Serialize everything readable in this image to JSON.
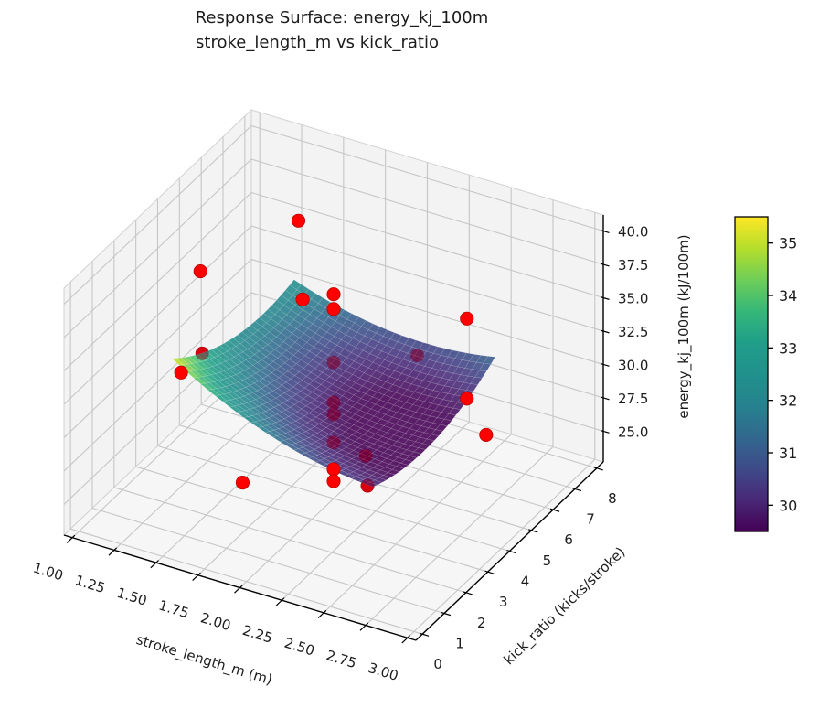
{
  "figure": {
    "background": "#ffffff",
    "title_line1": "Response Surface: energy_kj_100m",
    "title_line2": "stroke_length_m vs kick_ratio"
  },
  "chart_data": {
    "type": "scatter",
    "subtype": "3d-response-surface",
    "title": "Response Surface: energy_kj_100m\nstroke_length_m vs kick_ratio",
    "x_axis": {
      "label": "stroke_length_m (m)",
      "ticks": [
        1.0,
        1.25,
        1.5,
        1.75,
        2.0,
        2.25,
        2.5,
        2.75,
        3.0
      ],
      "tick_labels": [
        "1.00",
        "1.25",
        "1.50",
        "1.75",
        "2.00",
        "2.25",
        "2.50",
        "2.75",
        "3.00"
      ],
      "range": [
        0.95,
        3.05
      ]
    },
    "y_axis": {
      "label": "kick_ratio (kicks/stroke)",
      "ticks": [
        0,
        1,
        2,
        3,
        4,
        5,
        6,
        7,
        8
      ],
      "tick_labels": [
        "0",
        "1",
        "2",
        "3",
        "4",
        "5",
        "6",
        "7",
        "8"
      ],
      "range": [
        -0.3,
        8.3
      ]
    },
    "z_axis": {
      "label": "energy_kj_100m (kJ/100m)",
      "ticks": [
        25.0,
        27.5,
        30.0,
        32.5,
        35.0,
        37.5,
        40.0
      ],
      "tick_labels": [
        "25.0",
        "27.5",
        "30.0",
        "32.5",
        "35.0",
        "37.5",
        "40.0"
      ],
      "range": [
        22.7,
        41.2
      ]
    },
    "grid": true,
    "legend": false,
    "colormap": "viridis",
    "colorbar": {
      "vmin": 29.5,
      "vmax": 35.5,
      "ticks": [
        30,
        31,
        32,
        33,
        34,
        35
      ],
      "tick_labels": [
        "30",
        "31",
        "32",
        "33",
        "34",
        "35"
      ]
    },
    "surface": {
      "x_domain": [
        1.4,
        2.6
      ],
      "y_domain": [
        1.2,
        6.8
      ],
      "model": {
        "c0": 29.8,
        "c1": -2.667,
        "c2": -0.158,
        "c11": 3.0,
        "c22": 0.18,
        "c12": 0.569,
        "x0": 2.0,
        "y0": 4.0
      },
      "opacity": 0.88,
      "mesh_n": 28
    },
    "scatter": {
      "color": "#ff0000",
      "edge_color": "#b00000",
      "occluded_tint": "rgba(150,0,40,0.38)",
      "marker_radius": 7.2,
      "points": [
        {
          "x": 1.4,
          "y": 7.0,
          "z": 36.6,
          "behind": false
        },
        {
          "x": 1.4,
          "y": 2.5,
          "z": 39.8,
          "behind": false
        },
        {
          "x": 1.75,
          "y": 4.5,
          "z": 35.9,
          "behind": false
        },
        {
          "x": 2.0,
          "y": 4.0,
          "z": 38.0,
          "behind": false
        },
        {
          "x": 2.0,
          "y": 4.0,
          "z": 36.9,
          "behind": false
        },
        {
          "x": 2.6,
          "y": 5.5,
          "z": 36.1,
          "behind": false
        },
        {
          "x": 1.45,
          "y": 2.2,
          "z": 34.3,
          "behind": true
        },
        {
          "x": 1.35,
          "y": 2.0,
          "z": 32.8,
          "behind": false
        },
        {
          "x": 2.0,
          "y": 4.0,
          "z": 32.9,
          "behind": true
        },
        {
          "x": 2.2,
          "y": 6.3,
          "z": 30.6,
          "behind": true
        },
        {
          "x": 2.6,
          "y": 5.5,
          "z": 30.1,
          "behind": false
        },
        {
          "x": 2.0,
          "y": 4.0,
          "z": 29.9,
          "behind": true
        },
        {
          "x": 2.0,
          "y": 4.0,
          "z": 29.0,
          "behind": true
        },
        {
          "x": 2.65,
          "y": 6.0,
          "z": 26.8,
          "behind": false
        },
        {
          "x": 2.0,
          "y": 4.0,
          "z": 26.9,
          "behind": true
        },
        {
          "x": 2.1,
          "y": 4.7,
          "z": 25.2,
          "behind": true
        },
        {
          "x": 2.0,
          "y": 4.0,
          "z": 24.9,
          "behind": false
        },
        {
          "x": 2.0,
          "y": 4.0,
          "z": 24.0,
          "behind": false
        },
        {
          "x": 1.6,
          "y": 2.9,
          "z": 24.1,
          "behind": false
        },
        {
          "x": 2.15,
          "y": 4.4,
          "z": 23.6,
          "behind": true
        }
      ]
    },
    "styles": {
      "pane_color": "#f3f3f3",
      "pane_edge_color": "#d2d2d2",
      "grid_color": "#c6c6c6",
      "spine_color": "#000000",
      "text_color": "#1c1c1c"
    }
  }
}
